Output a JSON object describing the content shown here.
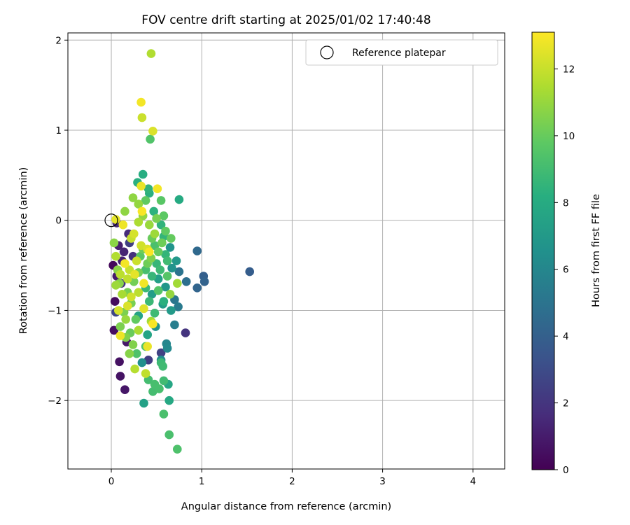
{
  "chart_data": {
    "type": "scatter",
    "title": "FOV centre drift starting at 2025/01/02 17:40:48",
    "xlabel": "Angular distance from reference (arcmin)",
    "ylabel": "Rotation from reference (arcmin)",
    "xlim": [
      -0.48,
      4.35
    ],
    "ylim": [
      -2.76,
      2.08
    ],
    "xticks": [
      0,
      1,
      2,
      3,
      4
    ],
    "yticks": [
      -2,
      -1,
      0,
      1,
      2
    ],
    "grid": true,
    "legend": {
      "position": "top-right",
      "label": "Reference platepar"
    },
    "reference_point": {
      "x": 0,
      "y": 0
    },
    "colorbar": {
      "label": "Hours from first FF file",
      "range": [
        0,
        13.1
      ],
      "ticks": [
        0,
        2,
        4,
        6,
        8,
        10,
        12
      ],
      "colormap": "viridis"
    },
    "points": [
      {
        "x": 0.02,
        "y": -0.5,
        "h": 0.3
      },
      {
        "x": 0.04,
        "y": -0.9,
        "h": 0.4
      },
      {
        "x": 0.03,
        "y": -1.22,
        "h": 0.5
      },
      {
        "x": 0.09,
        "y": -1.57,
        "h": 0.6
      },
      {
        "x": 0.1,
        "y": -1.73,
        "h": 0.7
      },
      {
        "x": 0.15,
        "y": -1.88,
        "h": 0.8
      },
      {
        "x": 0.17,
        "y": -1.35,
        "h": 0.9
      },
      {
        "x": 0.06,
        "y": -0.62,
        "h": 1.0
      },
      {
        "x": 0.08,
        "y": -0.28,
        "h": 1.1
      },
      {
        "x": 0.12,
        "y": -0.45,
        "h": 1.2
      },
      {
        "x": 0.14,
        "y": -0.35,
        "h": 1.4
      },
      {
        "x": 0.06,
        "y": -0.03,
        "h": 1.5
      },
      {
        "x": 0.19,
        "y": -0.15,
        "h": 1.7
      },
      {
        "x": 0.24,
        "y": -0.4,
        "h": 1.9
      },
      {
        "x": 0.11,
        "y": -0.7,
        "h": 2.0
      },
      {
        "x": 0.82,
        "y": -1.25,
        "h": 2.0
      },
      {
        "x": 0.41,
        "y": -1.55,
        "h": 2.4
      },
      {
        "x": 0.55,
        "y": -1.47,
        "h": 2.6
      },
      {
        "x": 0.05,
        "y": -1.02,
        "h": 2.8
      },
      {
        "x": 0.2,
        "y": -0.25,
        "h": 2.5
      },
      {
        "x": 1.53,
        "y": -0.57,
        "h": 3.9
      },
      {
        "x": 1.02,
        "y": -0.62,
        "h": 4.0
      },
      {
        "x": 1.03,
        "y": -0.68,
        "h": 4.2
      },
      {
        "x": 0.95,
        "y": -0.75,
        "h": 4.3
      },
      {
        "x": 0.95,
        "y": -0.34,
        "h": 4.5
      },
      {
        "x": 0.83,
        "y": -0.68,
        "h": 4.8
      },
      {
        "x": 0.75,
        "y": -0.57,
        "h": 5.0
      },
      {
        "x": 0.7,
        "y": -0.88,
        "h": 5.2
      },
      {
        "x": 0.74,
        "y": -0.96,
        "h": 5.4
      },
      {
        "x": 0.7,
        "y": -1.16,
        "h": 5.6
      },
      {
        "x": 0.61,
        "y": -1.37,
        "h": 6.0
      },
      {
        "x": 0.62,
        "y": -1.42,
        "h": 6.2
      },
      {
        "x": 0.55,
        "y": -1.55,
        "h": 6.4
      },
      {
        "x": 0.34,
        "y": -1.58,
        "h": 6.5
      },
      {
        "x": 0.49,
        "y": -1.18,
        "h": 6.6
      },
      {
        "x": 0.67,
        "y": -0.53,
        "h": 6.7
      },
      {
        "x": 0.6,
        "y": -0.74,
        "h": 6.9
      },
      {
        "x": 0.65,
        "y": -0.3,
        "h": 6.8
      },
      {
        "x": 0.72,
        "y": -0.45,
        "h": 7.0
      },
      {
        "x": 0.57,
        "y": -0.93,
        "h": 7.2
      },
      {
        "x": 0.45,
        "y": -0.82,
        "h": 7.3
      },
      {
        "x": 0.52,
        "y": -0.65,
        "h": 7.4
      },
      {
        "x": 0.36,
        "y": -2.03,
        "h": 7.5
      },
      {
        "x": 0.4,
        "y": -1.27,
        "h": 7.7
      },
      {
        "x": 0.3,
        "y": -1.06,
        "h": 7.6
      },
      {
        "x": 0.63,
        "y": -1.82,
        "h": 7.8
      },
      {
        "x": 0.64,
        "y": -2.0,
        "h": 7.9
      },
      {
        "x": 0.75,
        "y": 0.23,
        "h": 8.0
      },
      {
        "x": 0.35,
        "y": 0.51,
        "h": 8.2
      },
      {
        "x": 0.29,
        "y": 0.42,
        "h": 8.3
      },
      {
        "x": 0.42,
        "y": 0.3,
        "h": 8.3
      },
      {
        "x": 0.47,
        "y": 0.1,
        "h": 8.4
      },
      {
        "x": 0.55,
        "y": -0.05,
        "h": 8.5
      },
      {
        "x": 0.58,
        "y": -0.18,
        "h": 8.6
      },
      {
        "x": 0.6,
        "y": -0.38,
        "h": 8.6
      },
      {
        "x": 0.5,
        "y": -0.48,
        "h": 8.7
      },
      {
        "x": 0.45,
        "y": -0.62,
        "h": 8.7
      },
      {
        "x": 0.38,
        "y": -0.75,
        "h": 8.8
      },
      {
        "x": 0.42,
        "y": -0.9,
        "h": 8.8
      },
      {
        "x": 0.48,
        "y": -1.03,
        "h": 8.9
      },
      {
        "x": 0.55,
        "y": -1.58,
        "h": 8.9
      },
      {
        "x": 0.57,
        "y": -1.62,
        "h": 9.0
      },
      {
        "x": 0.58,
        "y": -1.78,
        "h": 9.0
      },
      {
        "x": 0.46,
        "y": -1.9,
        "h": 9.1
      },
      {
        "x": 0.41,
        "y": -1.77,
        "h": 9.1
      },
      {
        "x": 0.48,
        "y": -1.82,
        "h": 9.2
      },
      {
        "x": 0.53,
        "y": -1.87,
        "h": 9.2
      },
      {
        "x": 0.58,
        "y": -2.15,
        "h": 9.3
      },
      {
        "x": 0.64,
        "y": -2.38,
        "h": 9.3
      },
      {
        "x": 0.73,
        "y": -2.54,
        "h": 9.4
      },
      {
        "x": 0.43,
        "y": 0.9,
        "h": 9.5
      },
      {
        "x": 0.28,
        "y": -1.48,
        "h": 9.4
      },
      {
        "x": 0.38,
        "y": -1.4,
        "h": 9.5
      },
      {
        "x": 0.52,
        "y": -0.78,
        "h": 9.6
      },
      {
        "x": 0.62,
        "y": -0.62,
        "h": 9.6
      },
      {
        "x": 0.55,
        "y": 0.22,
        "h": 9.7
      },
      {
        "x": 0.58,
        "y": 0.05,
        "h": 9.8
      },
      {
        "x": 0.6,
        "y": -0.12,
        "h": 9.9
      },
      {
        "x": 0.52,
        "y": -0.35,
        "h": 10.0
      },
      {
        "x": 0.66,
        "y": -0.2,
        "h": 10.0
      },
      {
        "x": 0.45,
        "y": -0.2,
        "h": 10.1
      },
      {
        "x": 0.35,
        "y": -0.32,
        "h": 10.2
      },
      {
        "x": 0.4,
        "y": -0.48,
        "h": 10.2
      },
      {
        "x": 0.3,
        "y": -0.58,
        "h": 10.3
      },
      {
        "x": 0.25,
        "y": -0.68,
        "h": 10.3
      },
      {
        "x": 0.18,
        "y": -0.8,
        "h": 10.4
      },
      {
        "x": 0.22,
        "y": -0.92,
        "h": 10.4
      },
      {
        "x": 0.14,
        "y": -1.02,
        "h": 10.5
      },
      {
        "x": 0.1,
        "y": -1.18,
        "h": 10.5
      },
      {
        "x": 0.16,
        "y": -1.3,
        "h": 10.6
      },
      {
        "x": 0.24,
        "y": -1.38,
        "h": 10.6
      },
      {
        "x": 0.2,
        "y": -1.48,
        "h": 10.7
      },
      {
        "x": 0.09,
        "y": -0.7,
        "h": 10.7
      },
      {
        "x": 0.07,
        "y": -0.55,
        "h": 10.8
      },
      {
        "x": 0.03,
        "y": -0.25,
        "h": 10.8
      },
      {
        "x": 0.15,
        "y": 0.1,
        "h": 10.9
      },
      {
        "x": 0.24,
        "y": 0.25,
        "h": 10.9
      },
      {
        "x": 0.3,
        "y": 0.18,
        "h": 11.0
      },
      {
        "x": 0.35,
        "y": 0.05,
        "h": 11.0
      },
      {
        "x": 0.42,
        "y": -0.05,
        "h": 11.1
      },
      {
        "x": 0.48,
        "y": -0.15,
        "h": 11.2
      },
      {
        "x": 0.65,
        "y": -0.82,
        "h": 11.0
      },
      {
        "x": 0.73,
        "y": -0.7,
        "h": 11.3
      },
      {
        "x": 0.44,
        "y": -1.12,
        "h": 11.4
      },
      {
        "x": 0.3,
        "y": -1.22,
        "h": 11.5
      },
      {
        "x": 0.26,
        "y": -1.65,
        "h": 11.7
      },
      {
        "x": 0.38,
        "y": -1.7,
        "h": 11.9
      },
      {
        "x": 0.1,
        "y": -0.6,
        "h": 11.8
      },
      {
        "x": 0.05,
        "y": -0.4,
        "h": 11.6
      },
      {
        "x": 0.2,
        "y": -0.55,
        "h": 12.0
      },
      {
        "x": 0.28,
        "y": -0.45,
        "h": 12.1
      },
      {
        "x": 0.33,
        "y": -0.28,
        "h": 12.2
      },
      {
        "x": 0.25,
        "y": -0.15,
        "h": 12.3
      },
      {
        "x": 0.4,
        "y": -0.32,
        "h": 12.4
      },
      {
        "x": 0.22,
        "y": -0.85,
        "h": 12.2
      },
      {
        "x": 0.36,
        "y": -0.98,
        "h": 12.5
      },
      {
        "x": 0.44,
        "y": 1.85,
        "h": 11.6
      },
      {
        "x": 0.33,
        "y": 1.31,
        "h": 12.9
      },
      {
        "x": 0.34,
        "y": 1.14,
        "h": 12.1
      },
      {
        "x": 0.46,
        "y": 0.99,
        "h": 12.4
      },
      {
        "x": 0.33,
        "y": 0.38,
        "h": 12.7
      },
      {
        "x": 0.51,
        "y": 0.35,
        "h": 12.9
      },
      {
        "x": 0.34,
        "y": 0.1,
        "h": 13.0
      },
      {
        "x": 0.05,
        "y": 0.01,
        "h": 12.6
      },
      {
        "x": 0.13,
        "y": -0.05,
        "h": 12.8
      },
      {
        "x": 0.42,
        "y": -0.35,
        "h": 13.0
      },
      {
        "x": 0.36,
        "y": -0.7,
        "h": 12.9
      },
      {
        "x": 0.46,
        "y": -1.15,
        "h": 13.0
      },
      {
        "x": 0.4,
        "y": -1.4,
        "h": 12.7
      },
      {
        "x": 0.1,
        "y": -1.28,
        "h": 12.8
      },
      {
        "x": 0.18,
        "y": -0.95,
        "h": 12.4
      },
      {
        "x": 0.26,
        "y": -0.6,
        "h": 12.6
      },
      {
        "x": 0.15,
        "y": -0.48,
        "h": 12.9
      },
      {
        "x": 0.22,
        "y": -0.2,
        "h": 12.0
      },
      {
        "x": 0.05,
        "y": -0.72,
        "h": 11.2
      },
      {
        "x": 0.12,
        "y": -0.82,
        "h": 11.4
      },
      {
        "x": 0.3,
        "y": -0.8,
        "h": 11.8
      },
      {
        "x": 0.27,
        "y": -1.1,
        "h": 9.9
      },
      {
        "x": 0.21,
        "y": -1.25,
        "h": 10.1
      },
      {
        "x": 0.32,
        "y": -0.4,
        "h": 9.7
      },
      {
        "x": 0.38,
        "y": -0.55,
        "h": 9.2
      },
      {
        "x": 0.54,
        "y": -0.55,
        "h": 8.9
      },
      {
        "x": 0.48,
        "y": -0.28,
        "h": 9.3
      },
      {
        "x": 0.44,
        "y": -0.42,
        "h": 10.6
      },
      {
        "x": 0.56,
        "y": -0.25,
        "h": 10.2
      },
      {
        "x": 0.62,
        "y": -0.45,
        "h": 9.0
      },
      {
        "x": 0.5,
        "y": 0.02,
        "h": 10.4
      },
      {
        "x": 0.3,
        "y": -0.02,
        "h": 11.5
      },
      {
        "x": 0.38,
        "y": 0.22,
        "h": 9.9
      },
      {
        "x": 0.41,
        "y": 0.35,
        "h": 8.5
      },
      {
        "x": 0.58,
        "y": -0.9,
        "h": 8.3
      },
      {
        "x": 0.66,
        "y": -1.0,
        "h": 7.1
      },
      {
        "x": 0.18,
        "y": -0.65,
        "h": 11.9
      },
      {
        "x": 0.08,
        "y": -1.0,
        "h": 12.3
      },
      {
        "x": 0.16,
        "y": -1.1,
        "h": 11.1
      }
    ]
  }
}
